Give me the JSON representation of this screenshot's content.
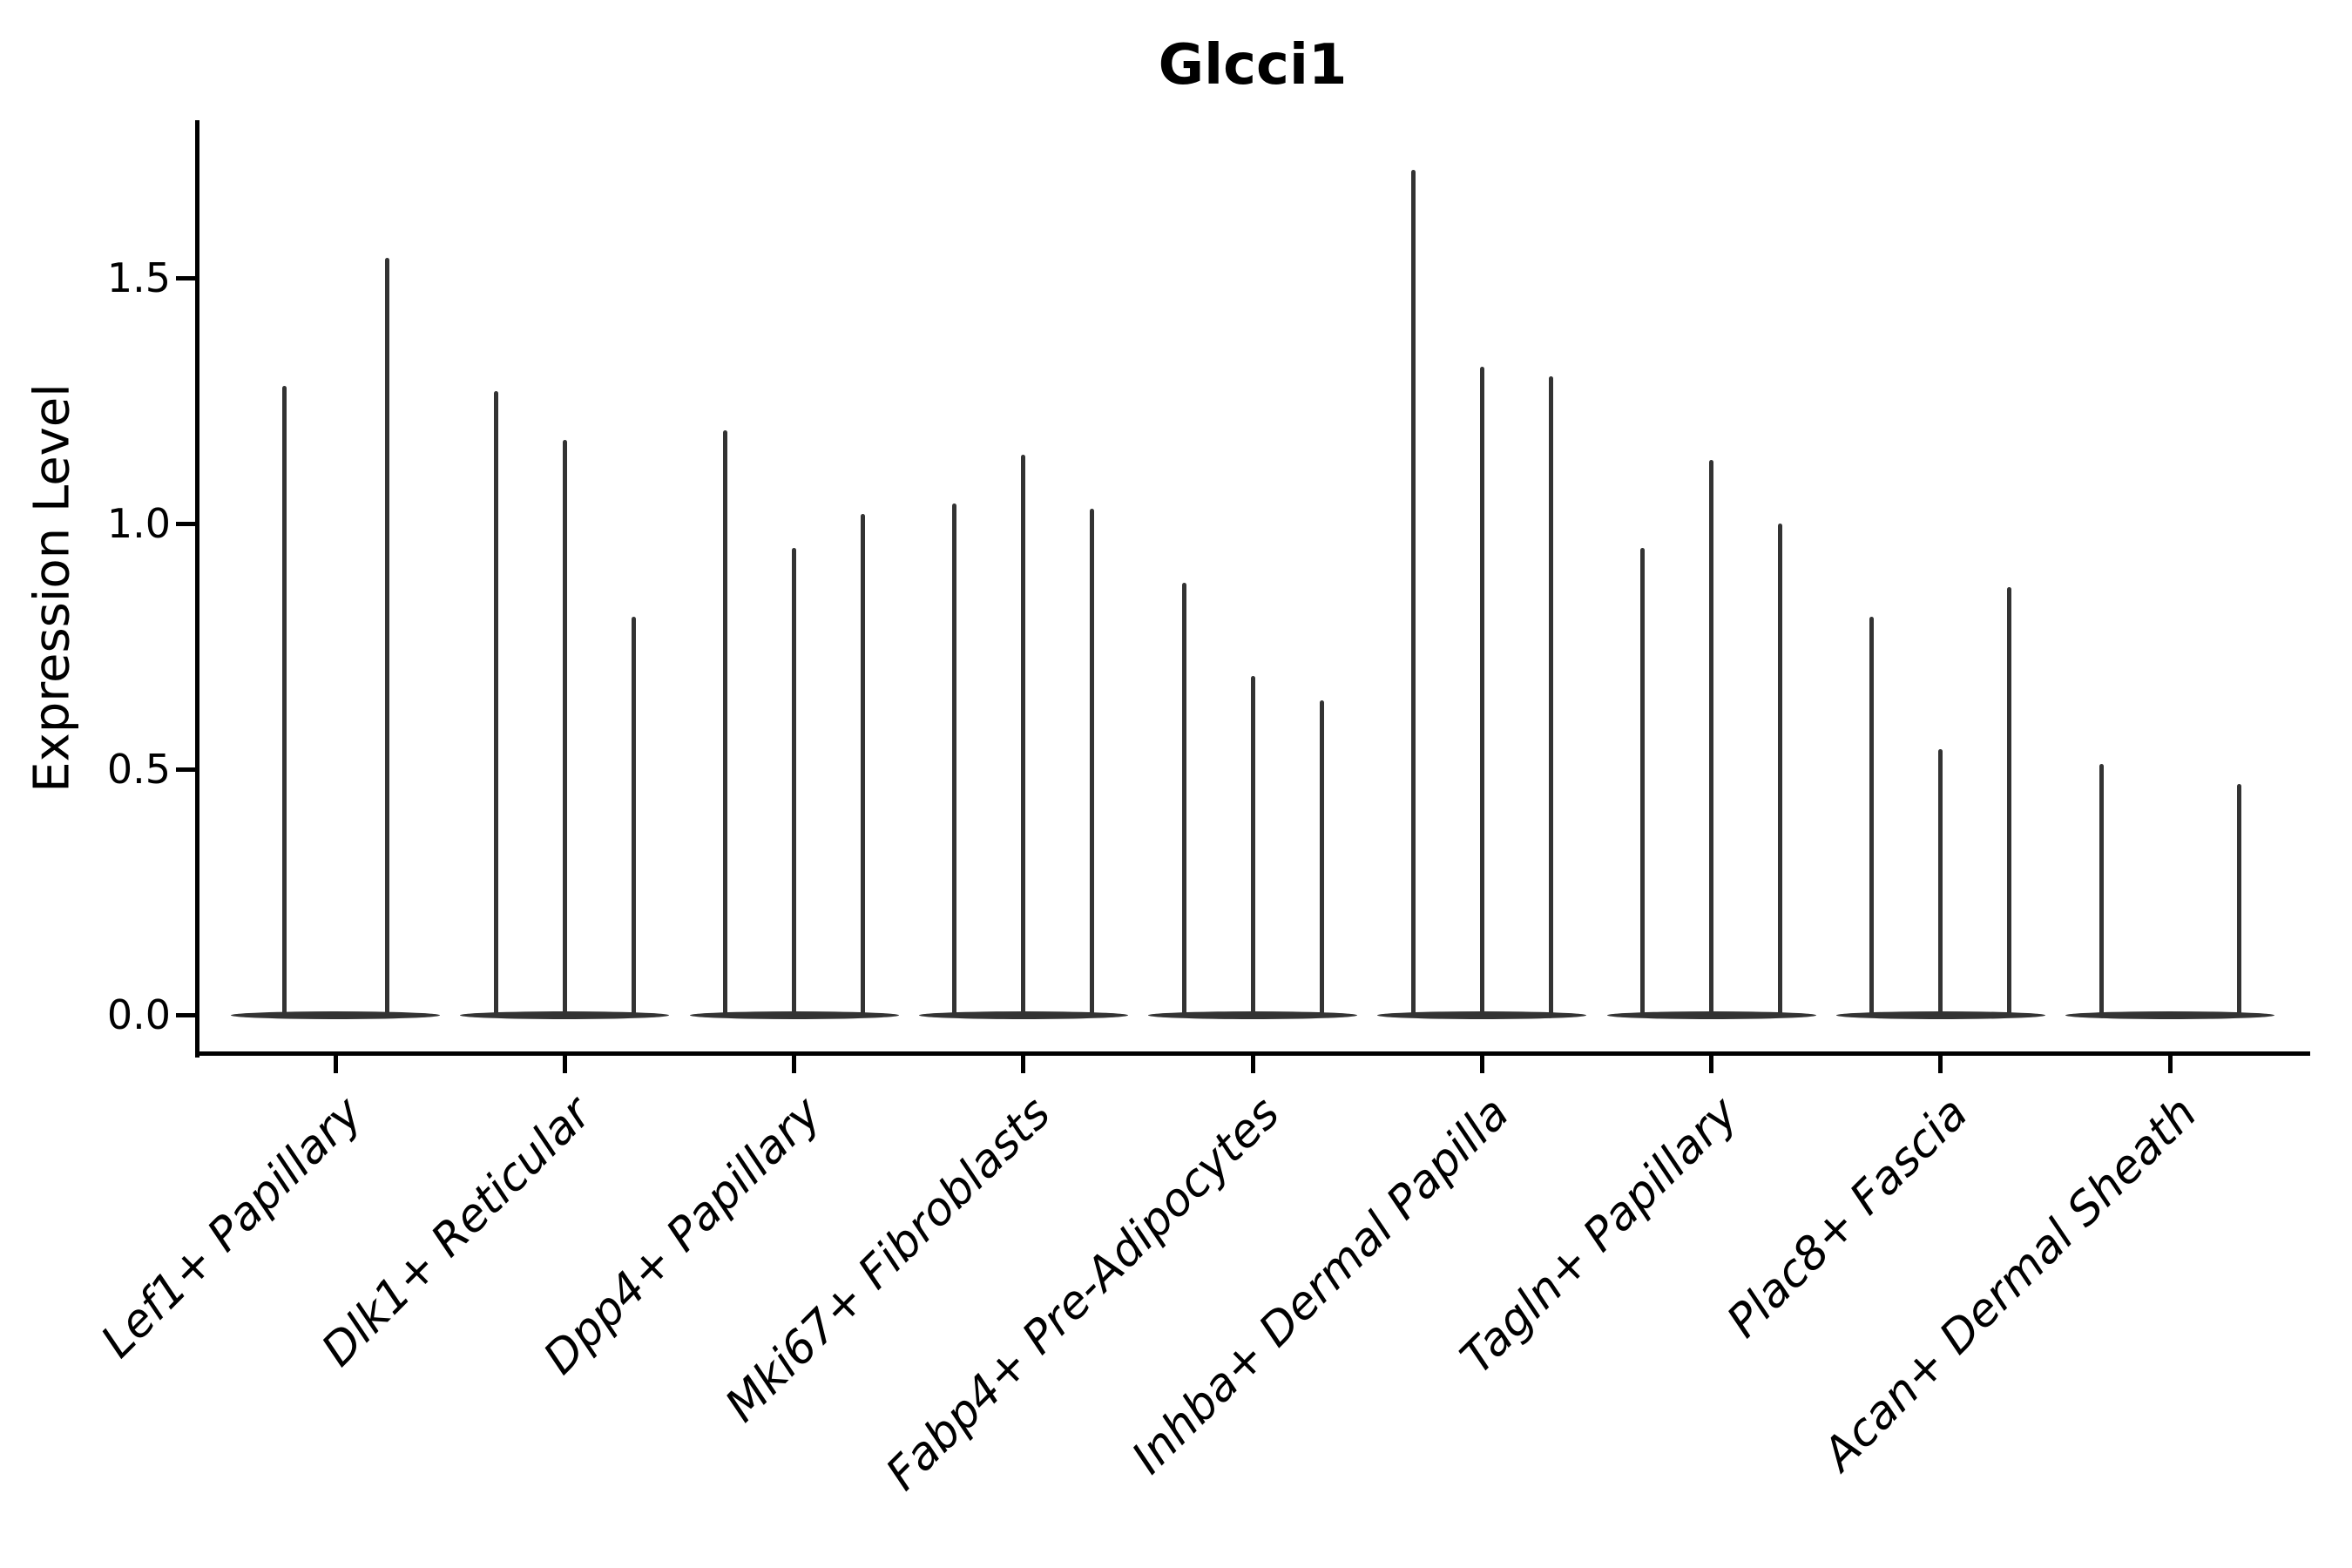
{
  "chart_data": {
    "type": "violin",
    "title": "Glcci1",
    "ylabel": "Expression Level",
    "xlabel": "",
    "grid": false,
    "legend": false,
    "violin_color": "#333333",
    "axis_color": "#000000",
    "ylim": [
      -0.08,
      1.82
    ],
    "yticks": [
      {
        "label": "0.0",
        "value": 0.0
      },
      {
        "label": "0.5",
        "value": 0.5
      },
      {
        "label": "1.0",
        "value": 1.0
      },
      {
        "label": "1.5",
        "value": 1.5
      }
    ],
    "categories": [
      "Lef1+ Papillary",
      "Dlk1+ Reticular",
      "Dpp4+ Papillary",
      "Mki67+ Fibroblasts",
      "Fabp4+ Pre-Adipocytes",
      "Inhba+ Dermal Papilla",
      "Tagln+ Papillary",
      "Plac8+ Fascia",
      "Acan+ Dermal Sheath"
    ],
    "groups": [
      {
        "category": "Lef1+ Papillary",
        "violins": [
          {
            "offset": -59,
            "peak": 1.28
          },
          {
            "offset": 59,
            "peak": 1.54
          }
        ]
      },
      {
        "category": "Dlk1+ Reticular",
        "violins": [
          {
            "offset": -79,
            "peak": 1.27
          },
          {
            "offset": 0,
            "peak": 1.17
          },
          {
            "offset": 79,
            "peak": 0.81
          }
        ]
      },
      {
        "category": "Dpp4+ Papillary",
        "violins": [
          {
            "offset": -79,
            "peak": 1.19
          },
          {
            "offset": 0,
            "peak": 0.95
          },
          {
            "offset": 79,
            "peak": 1.02
          }
        ]
      },
      {
        "category": "Mki67+ Fibroblasts",
        "violins": [
          {
            "offset": -79,
            "peak": 1.04
          },
          {
            "offset": 0,
            "peak": 1.14
          },
          {
            "offset": 79,
            "peak": 1.03
          }
        ]
      },
      {
        "category": "Fabp4+ Pre-Adipocytes",
        "violins": [
          {
            "offset": -79,
            "peak": 0.88
          },
          {
            "offset": 0,
            "peak": 0.69
          },
          {
            "offset": 79,
            "peak": 0.64
          }
        ]
      },
      {
        "category": "Inhba+ Dermal Papilla",
        "violins": [
          {
            "offset": -79,
            "peak": 1.72
          },
          {
            "offset": 0,
            "peak": 1.32
          },
          {
            "offset": 79,
            "peak": 1.3
          }
        ]
      },
      {
        "category": "Tagln+ Papillary",
        "violins": [
          {
            "offset": -79,
            "peak": 0.95
          },
          {
            "offset": 0,
            "peak": 1.13
          },
          {
            "offset": 79,
            "peak": 1.0
          }
        ]
      },
      {
        "category": "Plac8+ Fascia",
        "violins": [
          {
            "offset": -79,
            "peak": 0.81
          },
          {
            "offset": 0,
            "peak": 0.54
          },
          {
            "offset": 79,
            "peak": 0.87
          }
        ]
      },
      {
        "category": "Acan+ Dermal Sheath",
        "violins": [
          {
            "offset": -79,
            "peak": 0.51
          },
          {
            "offset": 79,
            "peak": 0.47
          }
        ]
      }
    ]
  }
}
